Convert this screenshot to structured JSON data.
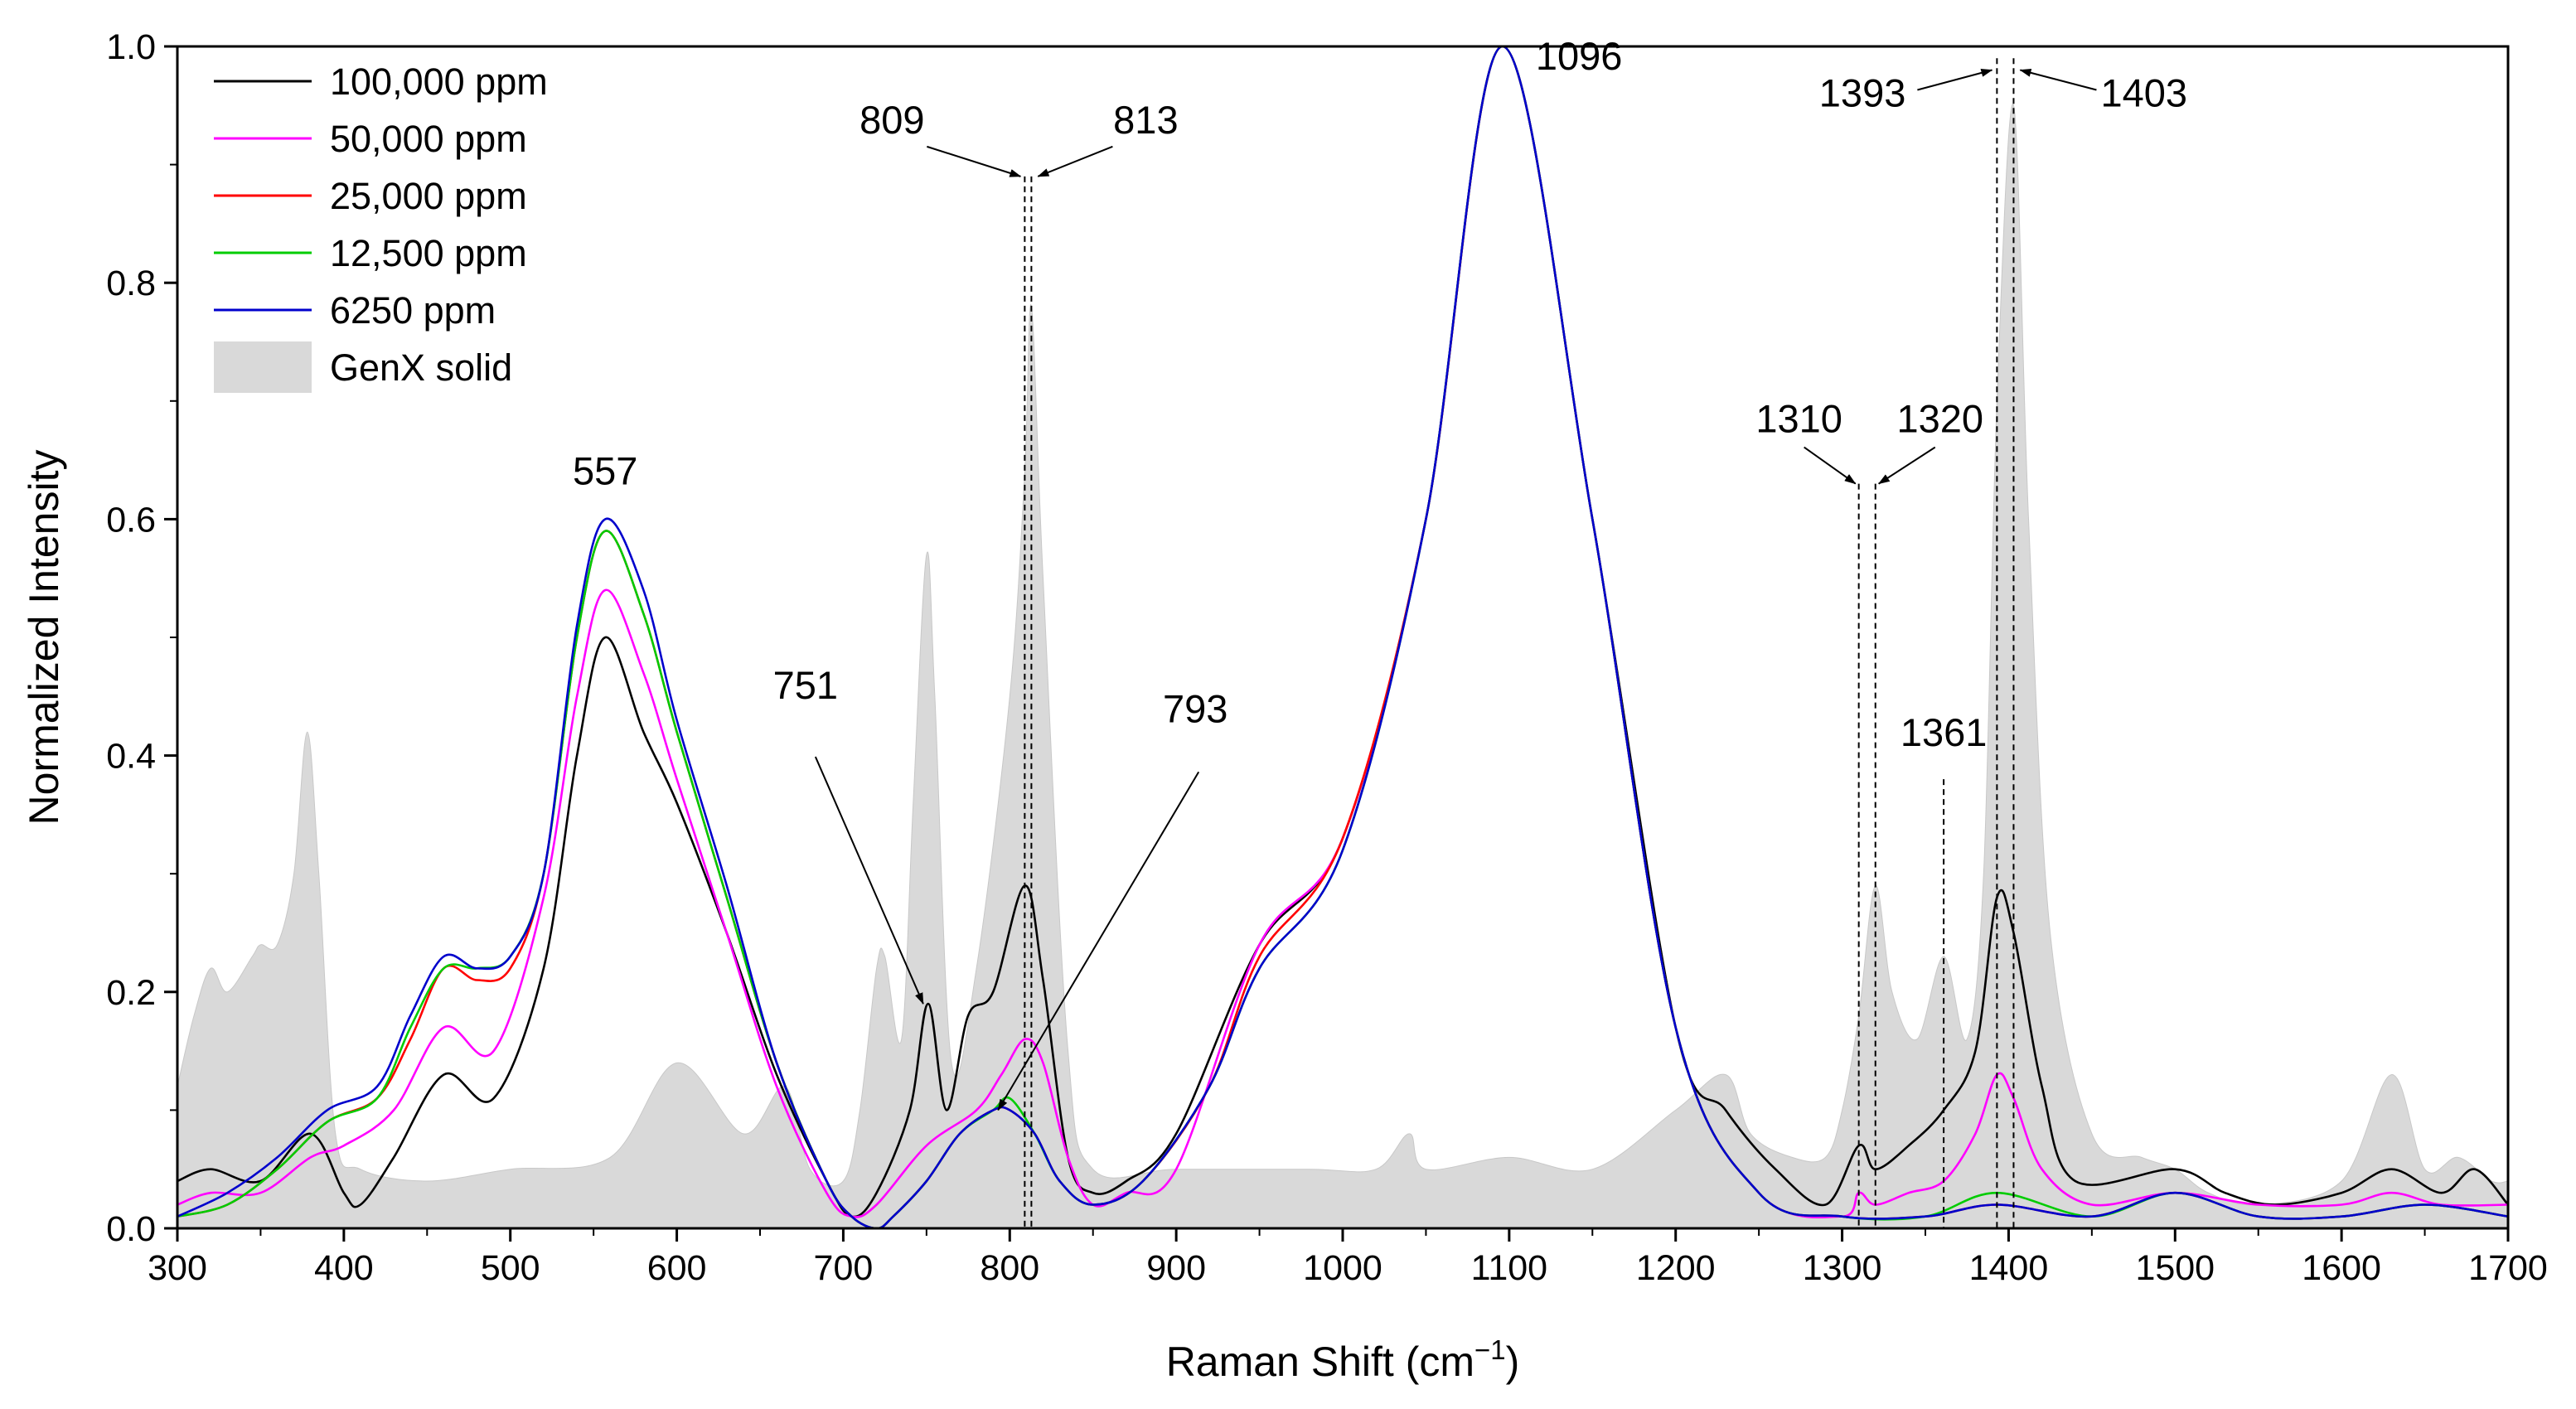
{
  "chart_data": {
    "type": "line",
    "xlabel": "Raman Shift (cm",
    "xlabel_sup": "−1",
    "xlabel_end": ")",
    "ylabel": "Normalized Intensity",
    "xlim": [
      300,
      1700
    ],
    "ylim": [
      0.0,
      1.0
    ],
    "x_ticks": [
      300,
      400,
      500,
      600,
      700,
      800,
      900,
      1000,
      1100,
      1200,
      1300,
      1400,
      1500,
      1600,
      1700
    ],
    "x_tick_labels": [
      "300",
      "400",
      "500",
      "600",
      "700",
      "800",
      "900",
      "1000",
      "1100",
      "1200",
      "1300",
      "1400",
      "1500",
      "1600",
      "1700"
    ],
    "y_ticks": [
      0.0,
      0.2,
      0.4,
      0.6,
      0.8,
      1.0
    ],
    "y_tick_labels": [
      "0.0",
      "0.2",
      "0.4",
      "0.6",
      "0.8",
      "1.0"
    ],
    "legend": {
      "position": "top-left"
    },
    "series": [
      {
        "name": "100,000 ppm",
        "color": "#000000",
        "x": [
          300,
          320,
          350,
          380,
          400,
          410,
          430,
          460,
          490,
          520,
          540,
          557,
          580,
          600,
          630,
          660,
          690,
          705,
          720,
          740,
          751,
          762,
          775,
          790,
          809,
          820,
          835,
          850,
          870,
          900,
          950,
          1000,
          1050,
          1096,
          1150,
          1200,
          1230,
          1260,
          1290,
          1310,
          1320,
          1340,
          1361,
          1380,
          1393,
          1403,
          1420,
          1440,
          1500,
          1530,
          1560,
          1600,
          1630,
          1660,
          1680,
          1700
        ],
        "y": [
          0.04,
          0.05,
          0.04,
          0.08,
          0.03,
          0.02,
          0.06,
          0.13,
          0.11,
          0.22,
          0.4,
          0.5,
          0.42,
          0.36,
          0.25,
          0.13,
          0.04,
          0.01,
          0.03,
          0.1,
          0.19,
          0.1,
          0.18,
          0.2,
          0.29,
          0.21,
          0.06,
          0.03,
          0.04,
          0.08,
          0.24,
          0.33,
          0.6,
          1.0,
          0.6,
          0.17,
          0.1,
          0.05,
          0.02,
          0.07,
          0.05,
          0.07,
          0.1,
          0.15,
          0.28,
          0.25,
          0.12,
          0.04,
          0.05,
          0.03,
          0.02,
          0.03,
          0.05,
          0.03,
          0.05,
          0.02
        ]
      },
      {
        "name": "50,000 ppm",
        "color": "#FF00FF",
        "x": [
          300,
          320,
          350,
          380,
          400,
          430,
          460,
          490,
          520,
          540,
          557,
          580,
          600,
          630,
          660,
          690,
          705,
          720,
          750,
          780,
          795,
          809,
          820,
          835,
          850,
          870,
          900,
          950,
          1000,
          1050,
          1096,
          1150,
          1200,
          1250,
          1300,
          1310,
          1320,
          1340,
          1361,
          1380,
          1393,
          1403,
          1420,
          1450,
          1500,
          1550,
          1600,
          1630,
          1660,
          1700
        ],
        "y": [
          0.02,
          0.03,
          0.03,
          0.06,
          0.07,
          0.1,
          0.17,
          0.15,
          0.28,
          0.45,
          0.54,
          0.47,
          0.38,
          0.25,
          0.12,
          0.03,
          0.01,
          0.02,
          0.07,
          0.1,
          0.13,
          0.16,
          0.14,
          0.06,
          0.02,
          0.03,
          0.05,
          0.24,
          0.33,
          0.6,
          1.0,
          0.6,
          0.17,
          0.03,
          0.01,
          0.03,
          0.02,
          0.03,
          0.04,
          0.08,
          0.13,
          0.11,
          0.05,
          0.02,
          0.03,
          0.02,
          0.02,
          0.03,
          0.02,
          0.02
        ]
      },
      {
        "name": "25,000 ppm",
        "color": "#FF0000",
        "x": [
          300,
          330,
          360,
          390,
          420,
          440,
          460,
          480,
          500,
          520,
          540,
          557,
          580,
          600,
          630,
          660,
          690,
          705,
          720,
          730,
          750,
          770,
          790,
          800,
          815,
          830,
          850,
          880,
          920,
          950,
          1000,
          1050,
          1096,
          1150,
          1200,
          1250,
          1300,
          1350,
          1393,
          1450,
          1500,
          1550,
          1600,
          1650,
          1700
        ],
        "y": [
          0.01,
          0.02,
          0.05,
          0.09,
          0.11,
          0.16,
          0.22,
          0.21,
          0.22,
          0.3,
          0.5,
          0.59,
          0.52,
          0.42,
          0.28,
          0.14,
          0.04,
          0.01,
          0.0,
          0.01,
          0.04,
          0.08,
          0.1,
          0.1,
          0.08,
          0.04,
          0.02,
          0.04,
          0.12,
          0.23,
          0.33,
          0.6,
          1.0,
          0.6,
          0.17,
          0.03,
          0.01,
          0.01,
          0.02,
          0.01,
          0.03,
          0.01,
          0.01,
          0.02,
          0.01
        ]
      },
      {
        "name": "12,500 ppm",
        "color": "#00CC00",
        "x": [
          300,
          330,
          360,
          390,
          420,
          440,
          460,
          480,
          500,
          520,
          540,
          557,
          580,
          600,
          630,
          660,
          690,
          705,
          720,
          730,
          750,
          770,
          790,
          800,
          815,
          830,
          850,
          880,
          920,
          950,
          1000,
          1050,
          1096,
          1150,
          1200,
          1250,
          1300,
          1350,
          1393,
          1450,
          1500,
          1550,
          1600,
          1650,
          1700
        ],
        "y": [
          0.01,
          0.02,
          0.05,
          0.09,
          0.11,
          0.17,
          0.22,
          0.22,
          0.23,
          0.3,
          0.5,
          0.59,
          0.52,
          0.42,
          0.28,
          0.14,
          0.04,
          0.01,
          0.0,
          0.01,
          0.04,
          0.08,
          0.1,
          0.11,
          0.08,
          0.04,
          0.02,
          0.04,
          0.12,
          0.22,
          0.32,
          0.6,
          1.0,
          0.6,
          0.17,
          0.03,
          0.01,
          0.01,
          0.03,
          0.01,
          0.03,
          0.01,
          0.01,
          0.02,
          0.01
        ]
      },
      {
        "name": "6250 ppm",
        "color": "#0000CC",
        "x": [
          300,
          330,
          360,
          390,
          420,
          440,
          460,
          480,
          500,
          520,
          540,
          557,
          580,
          600,
          630,
          660,
          690,
          705,
          720,
          730,
          750,
          770,
          790,
          800,
          815,
          830,
          850,
          880,
          920,
          950,
          1000,
          1050,
          1096,
          1150,
          1200,
          1250,
          1300,
          1350,
          1393,
          1450,
          1500,
          1550,
          1600,
          1650,
          1700
        ],
        "y": [
          0.01,
          0.03,
          0.06,
          0.1,
          0.12,
          0.18,
          0.23,
          0.22,
          0.23,
          0.3,
          0.51,
          0.6,
          0.54,
          0.43,
          0.29,
          0.14,
          0.04,
          0.01,
          0.0,
          0.01,
          0.04,
          0.08,
          0.1,
          0.1,
          0.08,
          0.04,
          0.02,
          0.04,
          0.12,
          0.22,
          0.32,
          0.6,
          1.0,
          0.6,
          0.17,
          0.03,
          0.01,
          0.01,
          0.02,
          0.01,
          0.03,
          0.01,
          0.01,
          0.02,
          0.01
        ]
      }
    ],
    "background_series": {
      "name": "GenX solid",
      "color": "#D9D9D9",
      "type": "area",
      "x": [
        300,
        310,
        320,
        330,
        345,
        350,
        360,
        370,
        378,
        385,
        395,
        410,
        450,
        500,
        560,
        600,
        640,
        665,
        680,
        700,
        710,
        720,
        725,
        735,
        742,
        750,
        755,
        765,
        780,
        800,
        809,
        813,
        820,
        835,
        850,
        900,
        980,
        1020,
        1040,
        1050,
        1100,
        1150,
        1200,
        1230,
        1245,
        1270,
        1290,
        1300,
        1310,
        1320,
        1330,
        1345,
        1361,
        1375,
        1385,
        1393,
        1403,
        1412,
        1425,
        1450,
        1480,
        1500,
        1520,
        1550,
        1600,
        1630,
        1650,
        1670,
        1690,
        1700
      ],
      "y": [
        0.12,
        0.18,
        0.22,
        0.2,
        0.23,
        0.24,
        0.24,
        0.3,
        0.42,
        0.3,
        0.08,
        0.05,
        0.04,
        0.05,
        0.06,
        0.14,
        0.08,
        0.12,
        0.05,
        0.04,
        0.1,
        0.22,
        0.23,
        0.16,
        0.36,
        0.57,
        0.45,
        0.14,
        0.22,
        0.45,
        0.64,
        0.78,
        0.55,
        0.15,
        0.05,
        0.05,
        0.05,
        0.05,
        0.08,
        0.05,
        0.06,
        0.05,
        0.1,
        0.13,
        0.08,
        0.06,
        0.06,
        0.1,
        0.18,
        0.29,
        0.2,
        0.16,
        0.23,
        0.16,
        0.3,
        0.7,
        0.95,
        0.6,
        0.25,
        0.08,
        0.06,
        0.05,
        0.03,
        0.02,
        0.04,
        0.13,
        0.05,
        0.06,
        0.04,
        0.04
      ]
    },
    "annotations": [
      {
        "text": "557",
        "x": 557,
        "y": 0.6
      },
      {
        "text": "1096",
        "x": 1096,
        "y": 1.0
      },
      {
        "text": "809",
        "x": 809,
        "y": 0.89
      },
      {
        "text": "813",
        "x": 813,
        "y": 0.89
      },
      {
        "text": "751",
        "x": 751,
        "y": 0.19
      },
      {
        "text": "793",
        "x": 793,
        "y": 0.1
      },
      {
        "text": "1310",
        "x": 1310,
        "y": 0.63
      },
      {
        "text": "1320",
        "x": 1320,
        "y": 0.63
      },
      {
        "text": "1361",
        "x": 1361,
        "y": 0.38
      },
      {
        "text": "1393",
        "x": 1393,
        "y": 0.98
      },
      {
        "text": "1403",
        "x": 1403,
        "y": 0.98
      }
    ],
    "guides": [
      809,
      813,
      1310,
      1320,
      1361,
      1393,
      1403
    ]
  }
}
